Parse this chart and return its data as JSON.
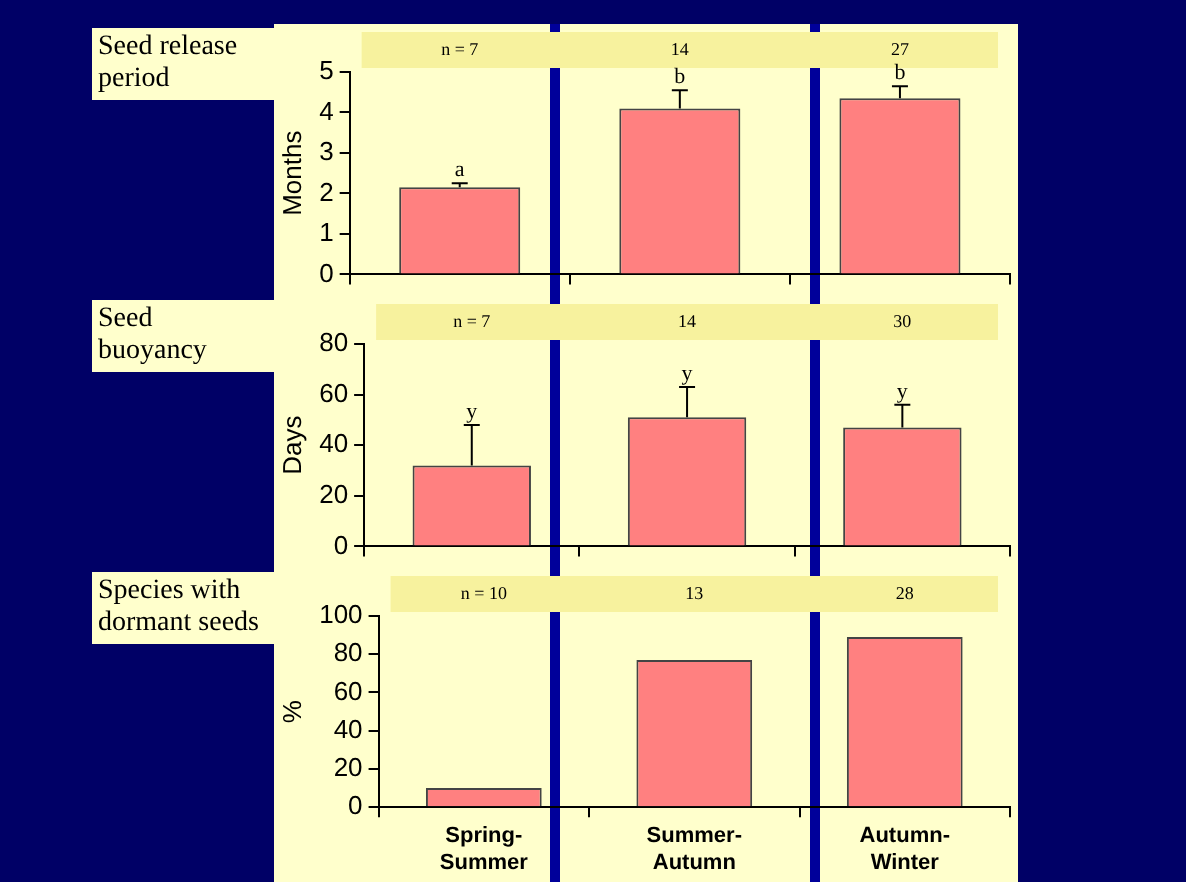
{
  "chart_data": [
    {
      "type": "bar",
      "title": "Seed release period",
      "ylabel": "Months",
      "categories": [
        null,
        null,
        null
      ],
      "values": [
        2.15,
        4.1,
        4.35
      ],
      "errors": [
        [
          2.15,
          2.25
        ],
        [
          4.1,
          4.55
        ],
        [
          4.35,
          4.65
        ]
      ],
      "color": "#ff8080",
      "ylim": [
        0,
        5
      ],
      "yticks": [
        0,
        1,
        2,
        3,
        4,
        5
      ],
      "tick_labels": "y",
      "annotations": [
        "n = 7",
        "14",
        "27",
        {
          "text": "a",
          "y": 2.25
        },
        {
          "text": "b",
          "y": 4.55
        },
        {
          "text": "b",
          "y": 4.65
        }
      ]
    },
    {
      "type": "bar",
      "title": "Seed buoyancy",
      "ylabel": "Days",
      "categories": [
        null,
        null,
        null
      ],
      "values": [
        32,
        51,
        47
      ],
      "errors": [
        [
          32,
          48
        ],
        [
          51,
          63
        ],
        [
          47,
          56
        ]
      ],
      "color": "#ff8080",
      "ylim": [
        0,
        80
      ],
      "yticks": [
        0,
        20,
        40,
        60,
        80
      ],
      "tick_labels": "y",
      "annotations": [
        "n = 7",
        "14",
        "30",
        {
          "text": "y",
          "y": 48
        },
        {
          "text": "y",
          "y": 63
        },
        {
          "text": "y",
          "y": 56
        }
      ]
    },
    {
      "type": "bar",
      "title": "Species with dormant seeds",
      "ylabel": "%",
      "categories": [
        "Spring-Summer",
        "Summer-Autumn",
        "Autumn-Winter"
      ],
      "values": [
        10,
        77,
        89
      ],
      "color": "#ff8080",
      "ylim": [
        0,
        100
      ],
      "yticks": [
        0,
        20,
        40,
        60,
        80,
        100
      ],
      "annotations": [
        "n = 10",
        "13",
        "28"
      ]
    }
  ]
}
